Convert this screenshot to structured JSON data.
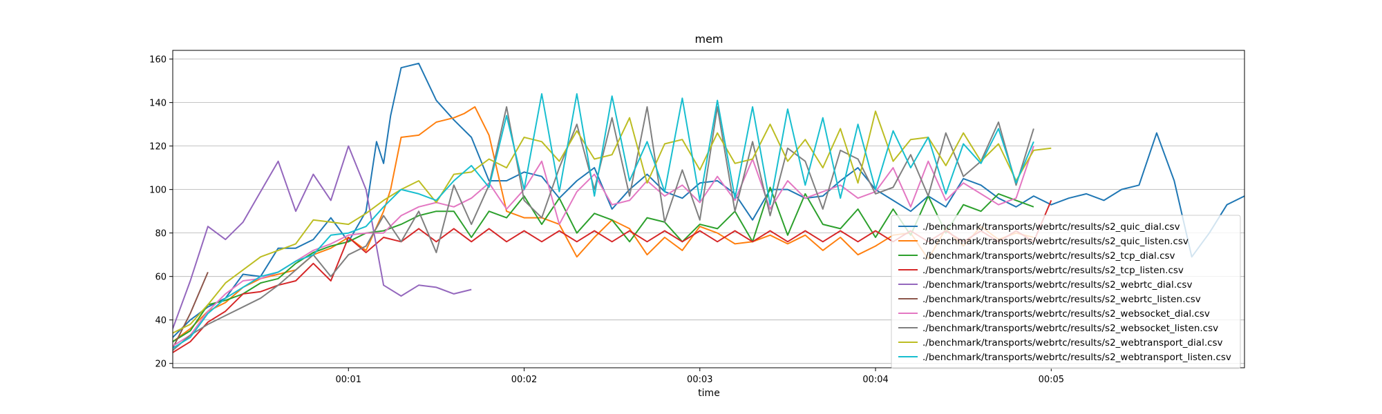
{
  "chart_data": {
    "type": "line",
    "title": "mem",
    "xlabel": "time",
    "ylabel": "",
    "grid": "horizontal",
    "legend_placement": "lower-right",
    "xlim": [
      0,
      305
    ],
    "ylim": [
      18,
      164
    ],
    "x_ticks": [
      {
        "value": 50,
        "label": "00:01"
      },
      {
        "value": 100,
        "label": "00:02"
      },
      {
        "value": 150,
        "label": "00:03"
      },
      {
        "value": 200,
        "label": "00:04"
      },
      {
        "value": 250,
        "label": "00:05"
      }
    ],
    "y_ticks": [
      20,
      40,
      60,
      80,
      100,
      120,
      140,
      160
    ],
    "series": [
      {
        "name": "./benchmark/transports/webrtc/results/s2_quic_dial.csv",
        "color": "#1f77b4",
        "x": [
          0,
          5,
          10,
          15,
          20,
          25,
          30,
          35,
          40,
          45,
          50,
          55,
          58,
          60,
          62,
          65,
          70,
          75,
          80,
          85,
          90,
          95,
          100,
          105,
          110,
          115,
          120,
          125,
          130,
          135,
          140,
          145,
          150,
          155,
          160,
          165,
          170,
          175,
          180,
          185,
          190,
          195,
          200,
          205,
          210,
          215,
          220,
          225,
          230,
          235,
          240,
          245,
          250,
          255,
          260,
          265,
          270,
          275,
          280,
          285,
          290,
          295,
          300,
          305
        ],
        "y": [
          32,
          40,
          46,
          50,
          61,
          60,
          73,
          73,
          77,
          87,
          76,
          90,
          122,
          112,
          134,
          156,
          158,
          141,
          132,
          124,
          104,
          104,
          108,
          106,
          96,
          104,
          110,
          91,
          100,
          107,
          99,
          96,
          103,
          104,
          98,
          86,
          100,
          100,
          96,
          97,
          104,
          110,
          100,
          95,
          90,
          97,
          92,
          105,
          102,
          96,
          92,
          97,
          93,
          96,
          98,
          95,
          100,
          102,
          126,
          104,
          69,
          80,
          93,
          97
        ],
        "label_x": [
          0,
          5,
          10,
          15,
          20,
          25,
          30,
          35,
          40,
          45,
          50,
          55,
          58,
          60,
          62,
          65,
          70,
          75,
          80,
          85,
          90,
          95,
          100,
          105,
          110,
          115,
          120,
          125,
          130,
          135,
          140,
          145,
          150,
          155,
          160,
          165,
          170,
          175,
          180,
          185,
          190,
          195,
          200,
          205,
          210,
          215,
          220,
          225,
          230,
          235,
          240,
          245,
          250,
          255,
          260,
          265,
          270,
          275,
          280,
          285,
          290,
          295,
          300,
          305
        ]
      },
      {
        "name": "./benchmark/transports/webrtc/results/s2_quic_listen.csv",
        "color": "#ff7f0e",
        "x": [
          0,
          5,
          10,
          15,
          20,
          25,
          30,
          35,
          40,
          45,
          50,
          55,
          60,
          62,
          65,
          70,
          75,
          80,
          83,
          86,
          90,
          95,
          100,
          105,
          110,
          115,
          120,
          125,
          130,
          135,
          140,
          145,
          150,
          155,
          160,
          165,
          170,
          175,
          180,
          185,
          190,
          195,
          200,
          205,
          210,
          215,
          220,
          225,
          230,
          235,
          240,
          245
        ],
        "y": [
          30,
          36,
          44,
          48,
          55,
          59,
          61,
          63,
          70,
          73,
          78,
          72,
          90,
          100,
          124,
          125,
          131,
          133,
          135,
          138,
          125,
          90,
          87,
          87,
          84,
          69,
          78,
          86,
          82,
          70,
          78,
          72,
          83,
          80,
          75,
          76,
          79,
          75,
          79,
          72,
          78,
          70,
          74,
          79,
          80,
          68,
          82,
          74,
          83,
          77,
          80,
          78
        ]
      },
      {
        "name": "./benchmark/transports/webrtc/results/s2_tcp_dial.csv",
        "color": "#2ca02c",
        "x": [
          0,
          5,
          10,
          15,
          20,
          25,
          30,
          35,
          40,
          45,
          50,
          55,
          60,
          65,
          70,
          75,
          80,
          85,
          90,
          95,
          100,
          105,
          110,
          115,
          120,
          125,
          130,
          135,
          140,
          145,
          150,
          155,
          160,
          165,
          170,
          175,
          180,
          185,
          190,
          195,
          200,
          205,
          210,
          215,
          220,
          225,
          230,
          235,
          240,
          245
        ],
        "y": [
          30,
          35,
          47,
          49,
          52,
          57,
          59,
          66,
          71,
          74,
          76,
          80,
          81,
          84,
          88,
          90,
          90,
          78,
          90,
          87,
          97,
          84,
          96,
          80,
          89,
          86,
          76,
          87,
          85,
          76,
          84,
          82,
          90,
          76,
          101,
          79,
          98,
          84,
          82,
          91,
          78,
          91,
          79,
          97,
          80,
          93,
          90,
          98,
          95,
          92
        ]
      },
      {
        "name": "./benchmark/transports/webrtc/results/s2_tcp_listen.csv",
        "color": "#d62728",
        "x": [
          0,
          5,
          10,
          15,
          20,
          25,
          30,
          35,
          40,
          45,
          50,
          55,
          60,
          65,
          70,
          75,
          80,
          85,
          90,
          95,
          100,
          105,
          110,
          115,
          120,
          125,
          130,
          135,
          140,
          145,
          150,
          155,
          160,
          165,
          170,
          175,
          180,
          185,
          190,
          195,
          200,
          205,
          210,
          215,
          220,
          225,
          230,
          235,
          240,
          245,
          250
        ],
        "y": [
          25,
          30,
          39,
          44,
          52,
          53,
          56,
          58,
          66,
          58,
          78,
          71,
          78,
          76,
          82,
          76,
          82,
          76,
          82,
          76,
          81,
          76,
          81,
          76,
          81,
          76,
          81,
          76,
          81,
          76,
          81,
          76,
          81,
          76,
          81,
          76,
          81,
          76,
          81,
          76,
          81,
          76,
          81,
          76,
          81,
          76,
          81,
          76,
          81,
          76,
          95
        ]
      },
      {
        "name": "./benchmark/transports/webrtc/results/s2_webrtc_dial.csv",
        "color": "#9467bd",
        "x": [
          0,
          5,
          10,
          15,
          20,
          25,
          30,
          35,
          40,
          45,
          50,
          55,
          60,
          65,
          70,
          75,
          80,
          85
        ],
        "y": [
          36,
          58,
          83,
          77,
          85,
          99,
          113,
          90,
          107,
          95,
          120,
          100,
          56,
          51,
          56,
          55,
          52,
          54
        ]
      },
      {
        "name": "./benchmark/transports/webrtc/results/s2_webrtc_listen.csv",
        "color": "#8c564b",
        "x": [
          0,
          5,
          10
        ],
        "y": [
          27,
          43,
          62
        ]
      },
      {
        "name": "./benchmark/transports/webrtc/results/s2_websocket_dial.csv",
        "color": "#e377c2",
        "x": [
          0,
          5,
          10,
          15,
          20,
          25,
          30,
          35,
          40,
          45,
          50,
          55,
          60,
          65,
          70,
          75,
          80,
          85,
          90,
          95,
          100,
          105,
          110,
          115,
          120,
          125,
          130,
          135,
          140,
          145,
          150,
          155,
          160,
          165,
          170,
          175,
          180,
          185,
          190,
          195,
          200,
          205,
          210,
          215,
          220,
          225,
          230,
          235,
          240,
          245
        ],
        "y": [
          28,
          33,
          44,
          52,
          58,
          59,
          62,
          67,
          72,
          75,
          79,
          80,
          80,
          88,
          92,
          94,
          92,
          96,
          103,
          91,
          100,
          113,
          84,
          99,
          107,
          93,
          95,
          104,
          97,
          102,
          94,
          106,
          95,
          114,
          91,
          104,
          96,
          99,
          102,
          96,
          99,
          110,
          92,
          113,
          95,
          103,
          98,
          93,
          96,
          120
        ]
      },
      {
        "name": "./benchmark/transports/webrtc/results/s2_websocket_listen.csv",
        "color": "#7f7f7f",
        "x": [
          0,
          5,
          10,
          15,
          20,
          25,
          30,
          35,
          40,
          45,
          50,
          55,
          60,
          65,
          70,
          75,
          80,
          85,
          90,
          95,
          100,
          105,
          110,
          115,
          120,
          125,
          130,
          135,
          140,
          145,
          150,
          155,
          160,
          165,
          170,
          175,
          180,
          185,
          190,
          195,
          200,
          205,
          210,
          215,
          220,
          225,
          230,
          235,
          240,
          245
        ],
        "y": [
          26,
          33,
          38,
          42,
          46,
          50,
          56,
          63,
          70,
          60,
          70,
          74,
          88,
          76,
          90,
          71,
          102,
          84,
          102,
          138,
          95,
          87,
          110,
          130,
          100,
          133,
          97,
          138,
          85,
          109,
          86,
          138,
          90,
          122,
          88,
          119,
          113,
          91,
          118,
          114,
          98,
          101,
          116,
          97,
          126,
          106,
          113,
          131,
          102,
          128
        ]
      },
      {
        "name": "./benchmark/transports/webrtc/results/s2_webtransport_dial.csv",
        "color": "#bcbd22",
        "x": [
          0,
          5,
          10,
          15,
          20,
          25,
          30,
          35,
          40,
          45,
          50,
          55,
          60,
          65,
          70,
          75,
          80,
          85,
          90,
          95,
          100,
          105,
          110,
          115,
          120,
          125,
          130,
          135,
          140,
          145,
          150,
          155,
          160,
          165,
          170,
          175,
          180,
          185,
          190,
          195,
          200,
          205,
          210,
          215,
          220,
          225,
          230,
          235,
          240,
          245,
          250
        ],
        "y": [
          34,
          38,
          47,
          57,
          63,
          69,
          72,
          75,
          86,
          85,
          84,
          89,
          95,
          100,
          104,
          94,
          107,
          108,
          114,
          110,
          124,
          122,
          113,
          127,
          114,
          116,
          133,
          103,
          121,
          123,
          109,
          126,
          112,
          114,
          130,
          113,
          123,
          110,
          128,
          103,
          136,
          113,
          123,
          124,
          111,
          126,
          113,
          121,
          104,
          118,
          119
        ]
      },
      {
        "name": "./benchmark/transports/webrtc/results/s2_webtransport_listen.csv",
        "color": "#17becf",
        "x": [
          0,
          5,
          10,
          15,
          20,
          25,
          30,
          35,
          40,
          45,
          50,
          55,
          60,
          65,
          70,
          75,
          80,
          85,
          90,
          95,
          100,
          105,
          110,
          115,
          120,
          125,
          130,
          135,
          140,
          145,
          150,
          155,
          160,
          165,
          170,
          175,
          180,
          185,
          190,
          195,
          200,
          205,
          210,
          215,
          220,
          225,
          230,
          235,
          240,
          245
        ],
        "y": [
          27,
          32,
          43,
          50,
          55,
          60,
          62,
          67,
          70,
          79,
          80,
          83,
          92,
          100,
          98,
          95,
          104,
          111,
          101,
          134,
          100,
          144,
          99,
          144,
          97,
          143,
          104,
          122,
          99,
          142,
          95,
          141,
          96,
          138,
          93,
          137,
          102,
          133,
          96,
          130,
          100,
          127,
          110,
          124,
          98,
          121,
          112,
          128,
          103,
          122
        ]
      }
    ]
  }
}
